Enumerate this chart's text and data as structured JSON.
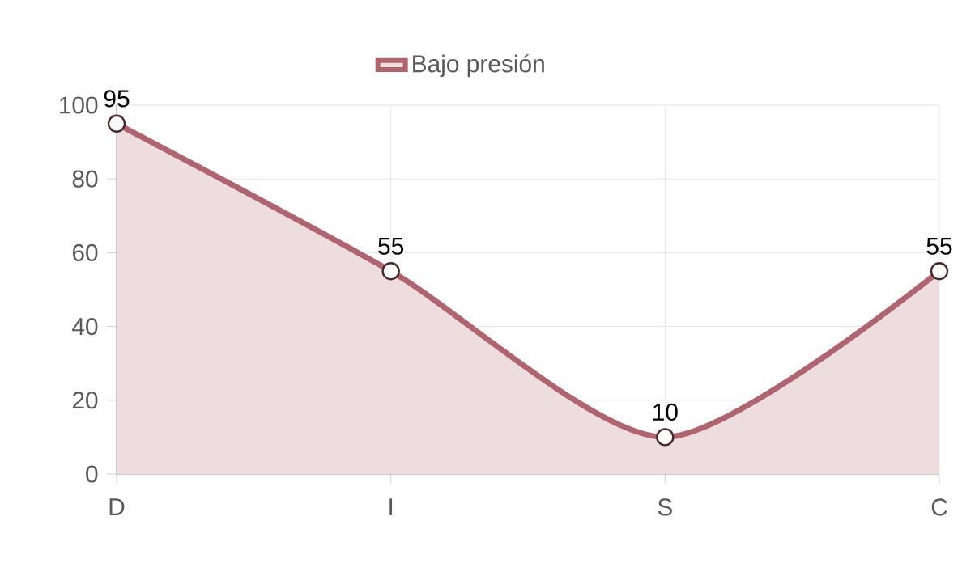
{
  "chart_data": {
    "type": "area",
    "categories": [
      "D",
      "I",
      "S",
      "C"
    ],
    "series": [
      {
        "name": "Bajo presión",
        "color": "#b0646e",
        "values": [
          95,
          55,
          10,
          55
        ]
      }
    ],
    "ylim": [
      0,
      100
    ],
    "yticks": [
      0,
      20,
      40,
      60,
      80,
      100
    ],
    "grid": true,
    "legend": "top",
    "marker": "circle",
    "data_labels": true
  }
}
